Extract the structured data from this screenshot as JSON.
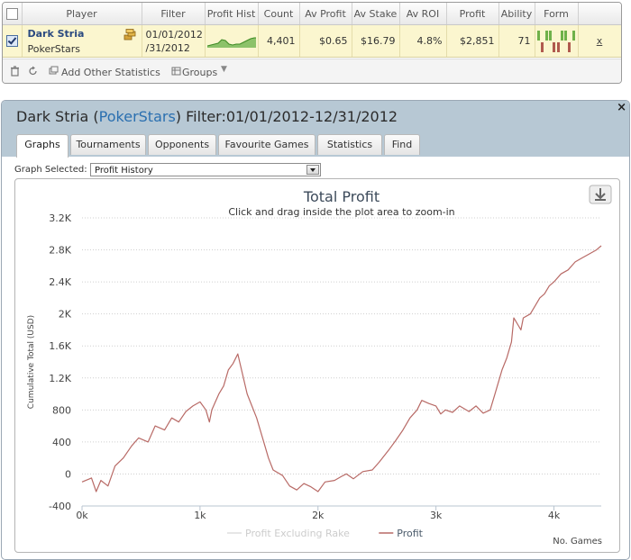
{
  "grid": {
    "headers": [
      "Player",
      "Filter",
      "Profit Hist",
      "Count",
      "Av Profit",
      "Av Stake",
      "Av ROI",
      "Profit",
      "Ability",
      "Form"
    ],
    "row": {
      "player_name": "Dark Stria",
      "player_site": "PokerStars",
      "filter": "01/01/2012\n/31/2012",
      "count": "4,401",
      "av_profit": "$0.65",
      "av_stake": "$16.79",
      "av_roi": "4.8%",
      "profit": "$2,851",
      "ability": "71",
      "close": "x",
      "form": [
        1,
        0,
        1,
        1,
        0,
        0,
        1,
        1,
        0,
        1
      ]
    },
    "toolbar": {
      "add_stats": "Add Other Statistics",
      "groups": "Groups"
    },
    "colors": {
      "win": "#6fb14a",
      "loss": "#b05a4e"
    }
  },
  "window": {
    "player": "Dark Stria",
    "open_paren": "(",
    "site": "PokerStars",
    "close_paren": ")",
    "filter": " Filter:01/01/2012-12/31/2012",
    "close": "×"
  },
  "tabs": [
    "Graphs",
    "Tournaments",
    "Opponents",
    "Favourite Games",
    "Statistics",
    "Find"
  ],
  "active_tab": "Graphs",
  "graph_selected_label": "Graph Selected:",
  "graph_selected_value": "Profit History",
  "chart_data": {
    "type": "line",
    "title": "Total Profit",
    "subtitle": "Click and drag inside the plot area to zoom-in",
    "ylabel": "Cumulative Total (USD)",
    "xlabel": "No. Games",
    "xlim": [
      0,
      4401
    ],
    "ylim": [
      -400,
      3200
    ],
    "x_ticks": [
      "0k",
      "1k",
      "2k",
      "3k",
      "4k"
    ],
    "y_ticks": [
      "-400",
      "0",
      "400",
      "800",
      "1.2K",
      "1.6K",
      "2K",
      "2.4K",
      "2.8K",
      "3.2K"
    ],
    "grid": true,
    "legend_position": "bottom",
    "series": [
      {
        "name": "Profit",
        "color": "#b86a66",
        "x": [
          0,
          80,
          120,
          160,
          220,
          280,
          350,
          420,
          480,
          560,
          620,
          700,
          760,
          820,
          880,
          940,
          1000,
          1050,
          1080,
          1100,
          1130,
          1160,
          1200,
          1240,
          1280,
          1320,
          1400,
          1480,
          1540,
          1580,
          1620,
          1700,
          1760,
          1820,
          1880,
          1940,
          2000,
          2060,
          2140,
          2200,
          2240,
          2300,
          2380,
          2460,
          2520,
          2600,
          2660,
          2720,
          2780,
          2840,
          2880,
          2940,
          3000,
          3040,
          3080,
          3140,
          3200,
          3280,
          3340,
          3400,
          3460,
          3500,
          3560,
          3600,
          3640,
          3660,
          3700,
          3720,
          3740,
          3800,
          3840,
          3880,
          3920,
          3960,
          4000,
          4060,
          4120,
          4180,
          4240,
          4300,
          4360,
          4401
        ],
        "y": [
          -100,
          -50,
          -220,
          -80,
          -150,
          100,
          200,
          350,
          450,
          400,
          600,
          550,
          700,
          650,
          780,
          850,
          900,
          800,
          650,
          800,
          900,
          1000,
          1100,
          1300,
          1380,
          1500,
          1000,
          700,
          400,
          200,
          50,
          -20,
          -150,
          -200,
          -120,
          -160,
          -220,
          -100,
          -80,
          -30,
          0,
          -60,
          30,
          50,
          150,
          300,
          420,
          550,
          700,
          800,
          920,
          880,
          850,
          750,
          800,
          770,
          850,
          780,
          850,
          760,
          800,
          1000,
          1300,
          1450,
          1650,
          1950,
          1850,
          1800,
          1950,
          2000,
          2100,
          2200,
          2250,
          2350,
          2400,
          2500,
          2550,
          2650,
          2700,
          2750,
          2800,
          2851
        ]
      },
      {
        "name": "Profit Excluding Rake",
        "color": "#dddddd",
        "x": [],
        "y": []
      }
    ]
  }
}
